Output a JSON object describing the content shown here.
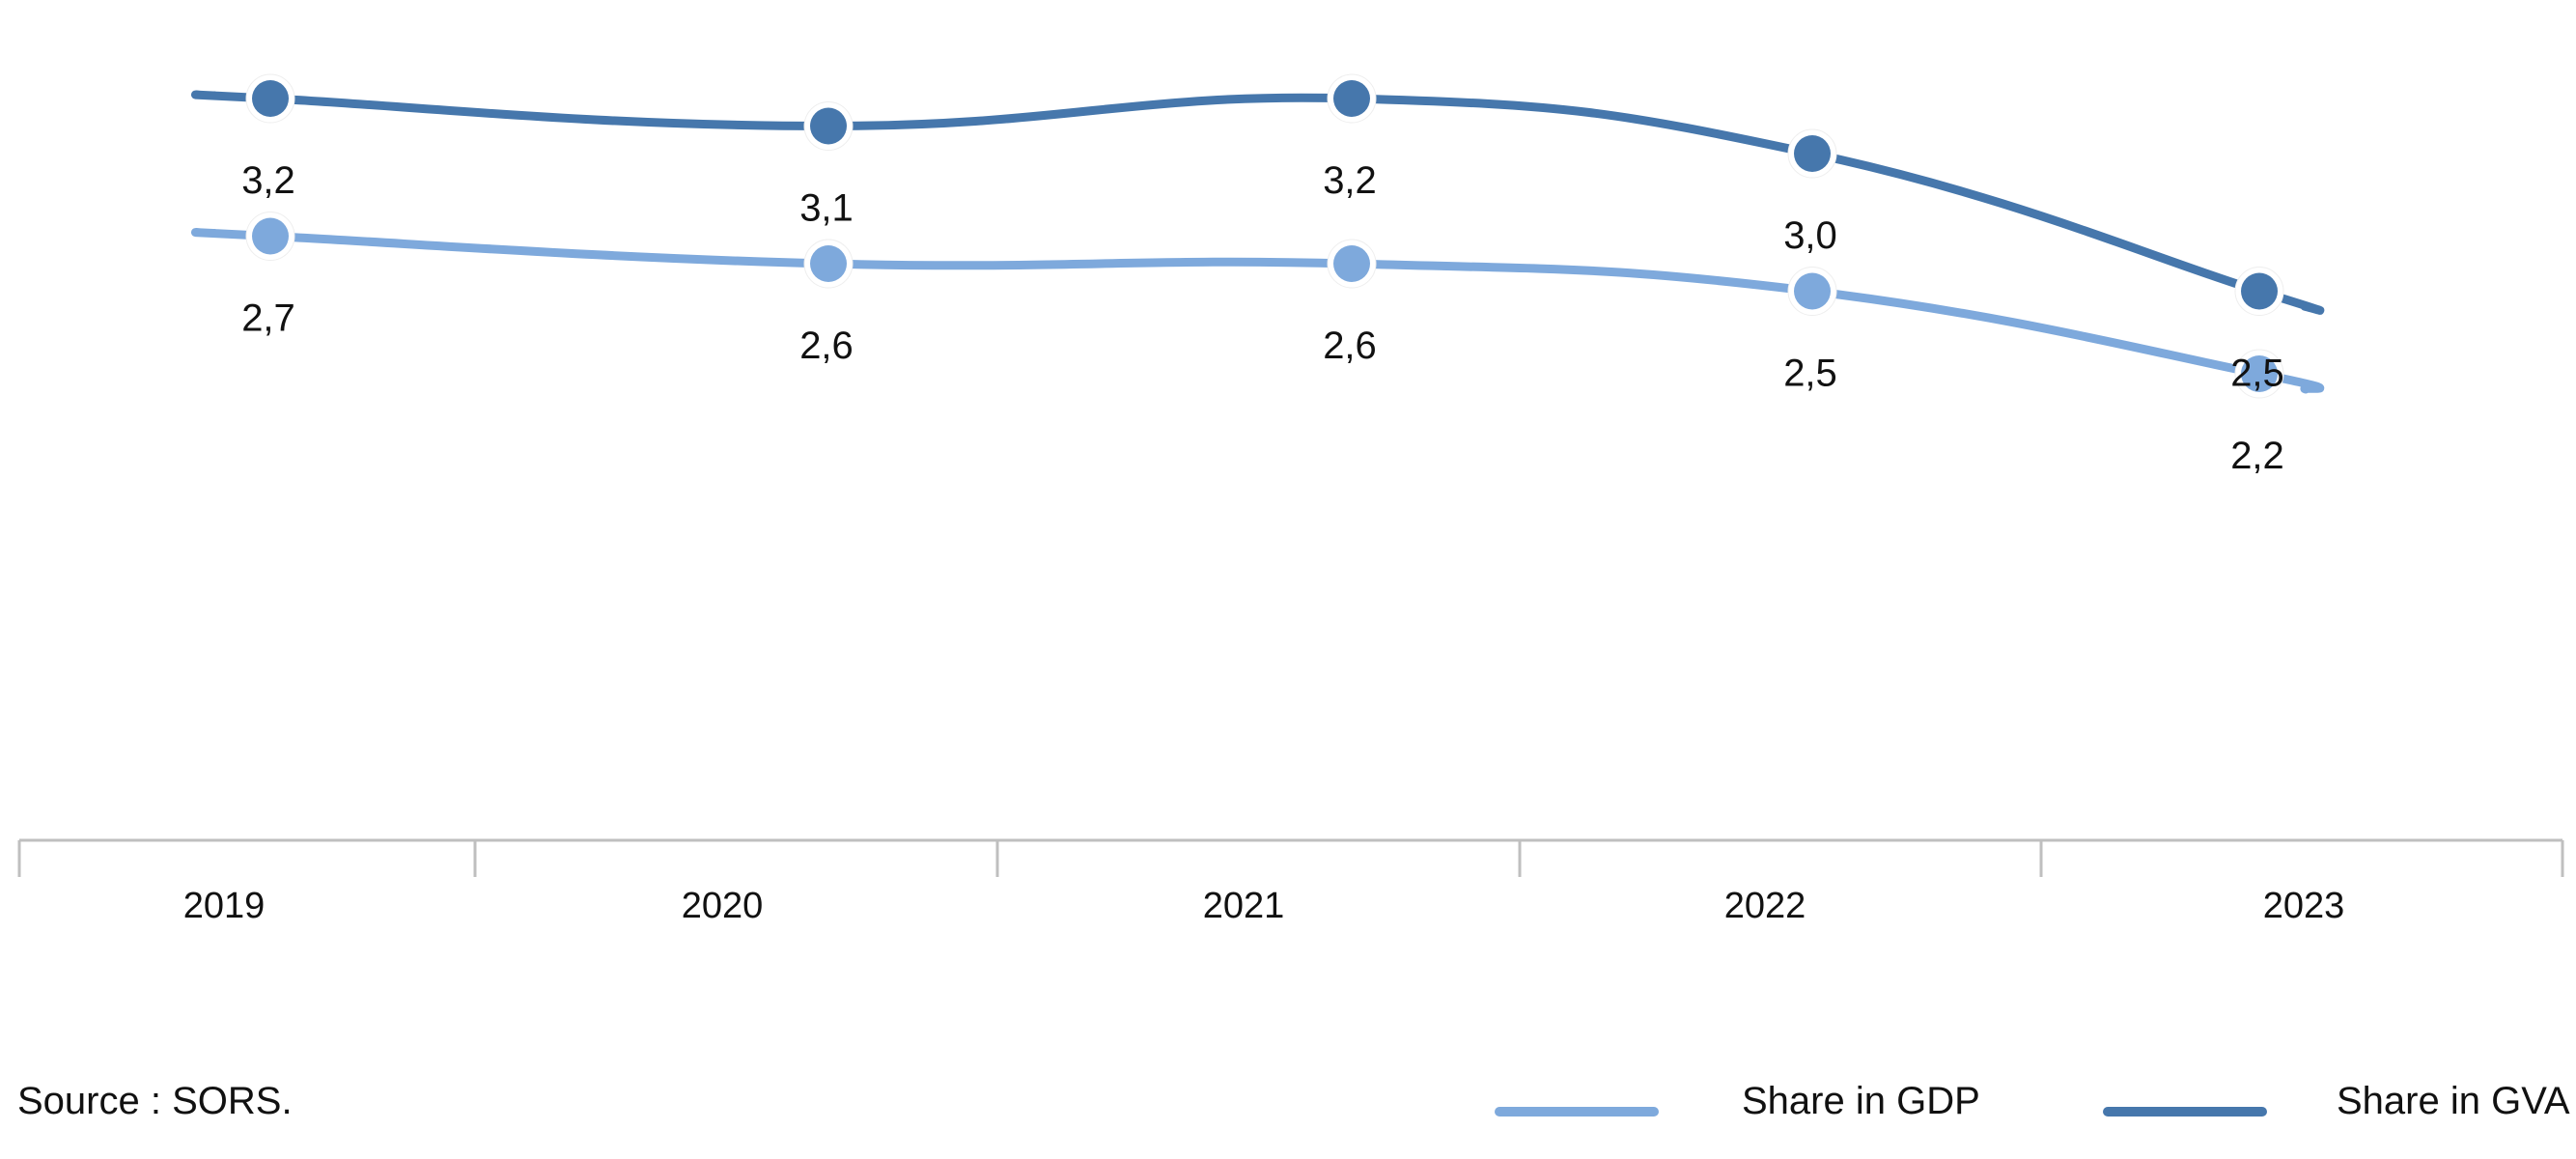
{
  "chart_data": {
    "type": "line",
    "title": "",
    "xlabel": "",
    "ylabel": "",
    "categories": [
      "2019",
      "2020",
      "2021",
      "2022",
      "2023"
    ],
    "series": [
      {
        "name": "Share in GVA",
        "values": [
          3.2,
          3.1,
          3.2,
          3.0,
          2.5
        ],
        "labels": [
          "3,2",
          "3,1",
          "3,2",
          "3,0",
          "2,5"
        ],
        "color": "#4677AC"
      },
      {
        "name": "Share in GDP",
        "values": [
          2.7,
          2.6,
          2.6,
          2.5,
          2.2
        ],
        "labels": [
          "2,7",
          "2,6",
          "2,6",
          "2,5",
          "2,2"
        ],
        "color": "#7EA9DC"
      }
    ],
    "grid": false,
    "legend_position": "bottom-right",
    "smooth": true,
    "markers": true
  },
  "source": "Source : SORS.",
  "legend": [
    {
      "label": "Share in GDP",
      "color": "#7EA9DC"
    },
    {
      "label": "Share in GVA",
      "color": "#4677AC"
    }
  ]
}
